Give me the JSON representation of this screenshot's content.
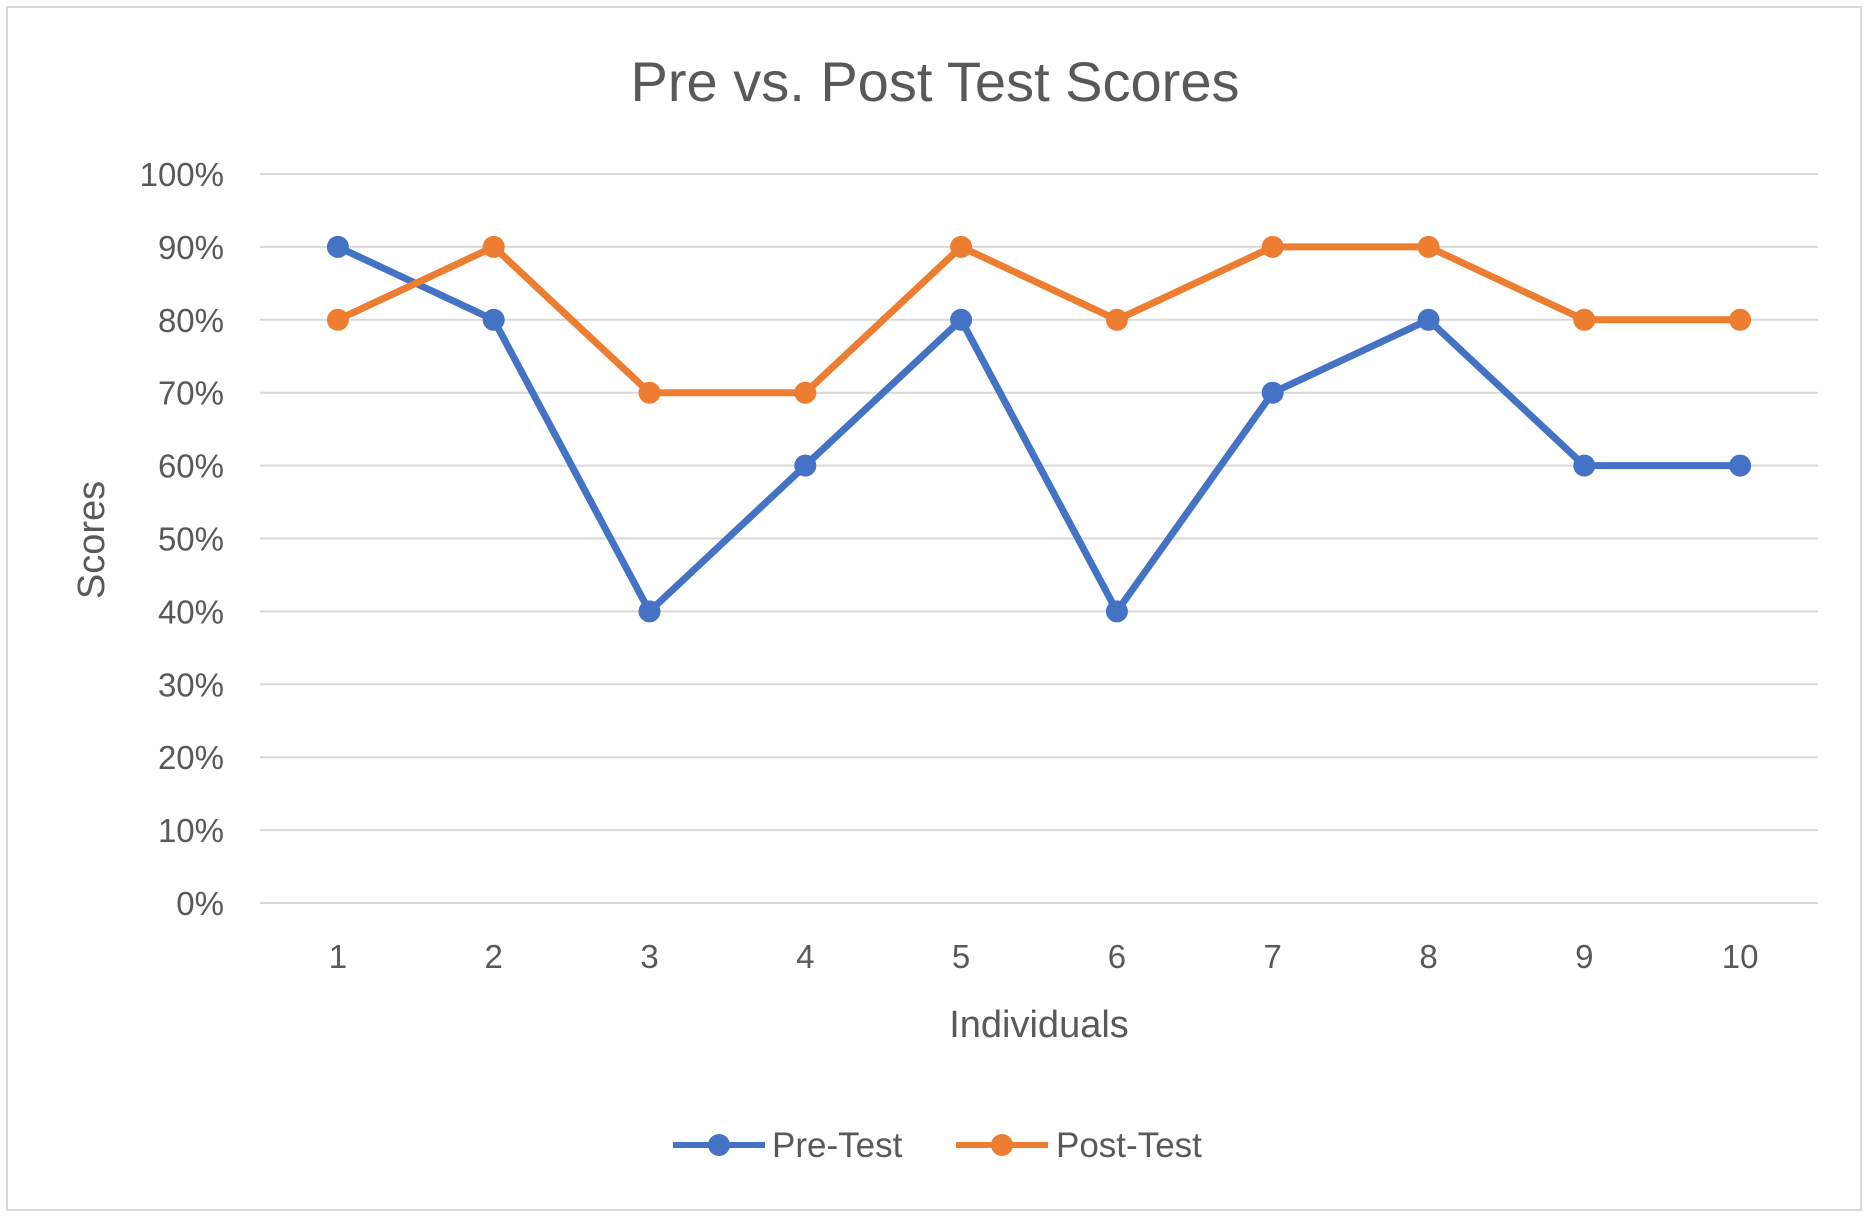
{
  "chart_data": {
    "type": "line",
    "title": "Pre vs. Post Test Scores",
    "xlabel": "Individuals",
    "ylabel": "Scores",
    "categories": [
      "1",
      "2",
      "3",
      "4",
      "5",
      "6",
      "7",
      "8",
      "9",
      "10"
    ],
    "y_ticks": [
      "0%",
      "10%",
      "20%",
      "30%",
      "40%",
      "50%",
      "60%",
      "70%",
      "80%",
      "90%",
      "100%"
    ],
    "ylim": [
      0,
      100
    ],
    "grid": true,
    "legend_position": "bottom",
    "series": [
      {
        "name": "Pre-Test",
        "color": "#4472c4",
        "values": [
          90,
          80,
          40,
          60,
          80,
          40,
          70,
          80,
          60,
          60
        ]
      },
      {
        "name": "Post-Test",
        "color": "#ed7d31",
        "values": [
          80,
          90,
          70,
          70,
          90,
          80,
          90,
          90,
          80,
          80
        ]
      }
    ]
  }
}
